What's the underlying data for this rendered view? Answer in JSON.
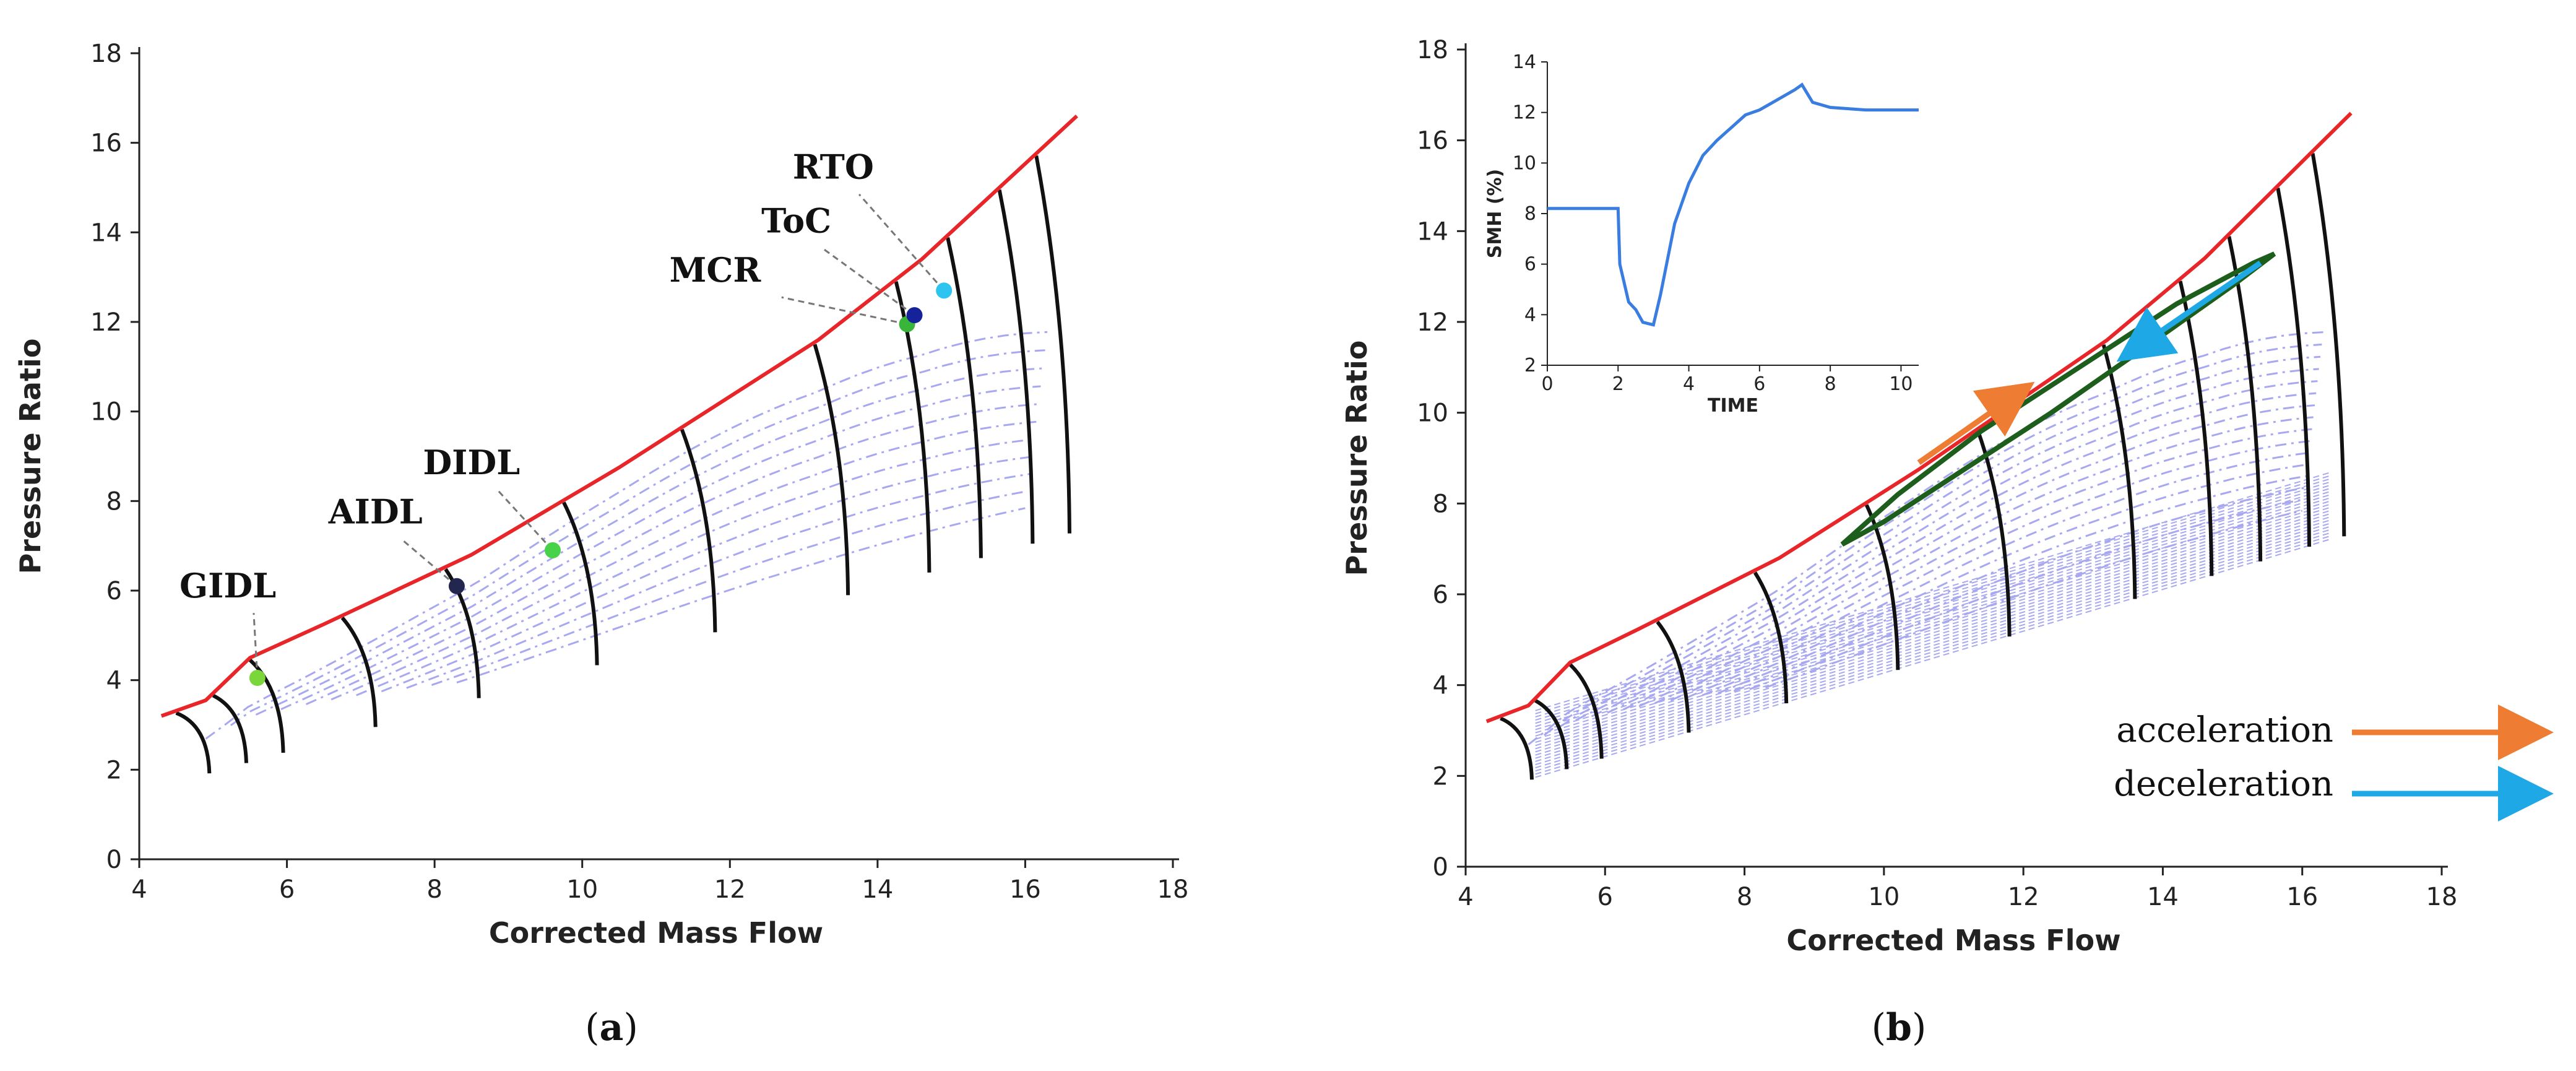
{
  "chart_data": [
    {
      "panel": "a",
      "caption_letter": "a",
      "type": "scatter",
      "xlabel": "Corrected Mass Flow",
      "ylabel": "Pressure Ratio",
      "xlim": [
        4,
        18
      ],
      "ylim": [
        0,
        18
      ],
      "xticks": [
        4,
        6,
        8,
        10,
        12,
        14,
        16,
        18
      ],
      "yticks": [
        0,
        2,
        4,
        6,
        8,
        10,
        12,
        14,
        16,
        18
      ],
      "colors": {
        "surge_line": "#e8262a",
        "speed_line": "#111111",
        "efficiency": "#a8a8f0"
      },
      "surge_line": [
        [
          4.3,
          3.2
        ],
        [
          4.9,
          3.55
        ],
        [
          5.5,
          4.5
        ],
        [
          6.5,
          5.25
        ],
        [
          8.5,
          6.8
        ],
        [
          10.5,
          8.75
        ],
        [
          13.2,
          11.6
        ],
        [
          14.6,
          13.4
        ],
        [
          16.7,
          16.6
        ]
      ],
      "operating_points": [
        {
          "label": "GIDL",
          "x": 5.6,
          "y": 4.05,
          "color": "#7ad63a"
        },
        {
          "label": "AIDL",
          "x": 8.3,
          "y": 6.1,
          "color": "#23264f"
        },
        {
          "label": "DIDL",
          "x": 9.6,
          "y": 6.9,
          "color": "#48d24a"
        },
        {
          "label": "MCR",
          "x": 14.4,
          "y": 11.95,
          "color": "#39b53a"
        },
        {
          "label": "ToC",
          "x": 14.5,
          "y": 12.15,
          "color": "#16229a"
        },
        {
          "label": "RTO",
          "x": 14.9,
          "y": 12.7,
          "color": "#2ec4f0"
        }
      ]
    },
    {
      "panel": "b",
      "caption_letter": "b",
      "type": "line",
      "xlabel": "Corrected Mass Flow",
      "ylabel": "Pressure Ratio",
      "xlim": [
        4,
        18
      ],
      "ylim": [
        0,
        18
      ],
      "xticks": [
        4,
        6,
        8,
        10,
        12,
        14,
        16,
        18
      ],
      "yticks": [
        0,
        2,
        4,
        6,
        8,
        10,
        12,
        14,
        16,
        18
      ],
      "colors": {
        "surge_line": "#e8262a",
        "speed_line": "#111111",
        "efficiency": "#a8a8f0",
        "transient": "#1d5e1d"
      },
      "surge_line": [
        [
          4.3,
          3.2
        ],
        [
          4.9,
          3.55
        ],
        [
          5.5,
          4.5
        ],
        [
          6.5,
          5.25
        ],
        [
          8.5,
          6.8
        ],
        [
          10.5,
          8.75
        ],
        [
          13.2,
          11.6
        ],
        [
          14.6,
          13.4
        ],
        [
          16.7,
          16.6
        ]
      ],
      "transient_loop_acceleration": [
        [
          9.4,
          7.1
        ],
        [
          10.2,
          8.2
        ],
        [
          11.4,
          9.6
        ],
        [
          12.8,
          11.0
        ],
        [
          14.2,
          12.4
        ],
        [
          15.3,
          13.3
        ],
        [
          15.6,
          13.5
        ]
      ],
      "transient_loop_deceleration": [
        [
          15.6,
          13.5
        ],
        [
          15.0,
          12.8
        ],
        [
          13.8,
          11.5
        ],
        [
          12.4,
          10.0
        ],
        [
          11.0,
          8.6
        ],
        [
          10.0,
          7.6
        ],
        [
          9.4,
          7.1
        ]
      ],
      "acceleration_arrow": {
        "from": [
          10.5,
          8.9
        ],
        "to": [
          11.9,
          10.4
        ],
        "color": "#ee7d33"
      },
      "deceleration_arrow": {
        "from": [
          15.4,
          13.3
        ],
        "to": [
          13.6,
          11.4
        ],
        "color": "#1fa8e6"
      },
      "legend": [
        {
          "label": "acceleration",
          "color": "#ee7d33"
        },
        {
          "label": "deceleration",
          "color": "#1fa8e6"
        }
      ],
      "inset": {
        "type": "line",
        "xlabel": "TIME",
        "ylabel": "SMH (%)",
        "xlim": [
          0,
          10.5
        ],
        "ylim": [
          2,
          14
        ],
        "xticks": [
          0,
          2,
          4,
          6,
          8,
          10
        ],
        "yticks": [
          2,
          4,
          6,
          8,
          10,
          12,
          14
        ],
        "color": "#3a7de0",
        "x": [
          0,
          2.0,
          2.05,
          2.3,
          2.5,
          2.7,
          3.0,
          3.2,
          3.6,
          4.0,
          4.4,
          4.8,
          5.2,
          5.6,
          6.0,
          6.5,
          7.0,
          7.2,
          7.5,
          8.0,
          9.0,
          10.5
        ],
        "y": [
          8.2,
          8.2,
          6.0,
          4.5,
          4.2,
          3.7,
          3.6,
          4.8,
          7.6,
          9.2,
          10.3,
          10.9,
          11.4,
          11.9,
          12.1,
          12.5,
          12.9,
          13.1,
          12.4,
          12.2,
          12.1,
          12.1
        ]
      }
    }
  ]
}
